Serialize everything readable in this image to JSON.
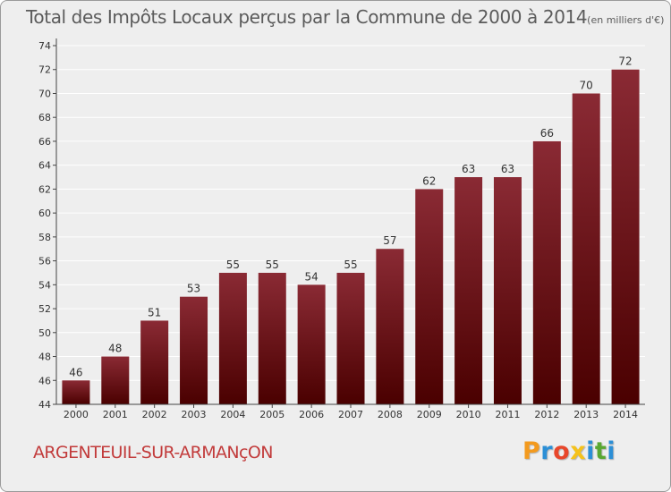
{
  "header": {
    "title": "Total des Impôts Locaux perçus par la Commune de 2000 à 2014",
    "unit": "(en milliers d'€)"
  },
  "commune_name": "ARGENTEUIL-SUR-ARMANçON",
  "logo": {
    "text": "Proxiti",
    "letters": [
      "P",
      "r",
      "o",
      "x",
      "i",
      "t",
      "i"
    ],
    "colors": [
      "#f39a1e",
      "#2c8fd6",
      "#e8472b",
      "#f5c21b",
      "#2c8fd6",
      "#5aa832",
      "#2c8fd6"
    ]
  },
  "colors": {
    "bar_top": "#8a2a34",
    "bar_bottom": "#4a0000",
    "grid": "#ffffff",
    "axis": "#444444"
  },
  "chart_data": {
    "type": "bar",
    "title": "Total des Impôts Locaux perçus par la Commune de 2000 à 2014",
    "xlabel": "",
    "ylabel": "en milliers d'€",
    "categories": [
      "2000",
      "2001",
      "2002",
      "2003",
      "2004",
      "2005",
      "2006",
      "2007",
      "2008",
      "2009",
      "2010",
      "2011",
      "2012",
      "2013",
      "2014"
    ],
    "values": [
      46,
      48,
      51,
      53,
      55,
      55,
      54,
      55,
      57,
      62,
      63,
      63,
      66,
      70,
      72
    ],
    "ylim": [
      44,
      74
    ],
    "yticks": [
      44,
      46,
      48,
      50,
      52,
      54,
      56,
      58,
      60,
      62,
      64,
      66,
      68,
      70,
      72,
      74
    ],
    "grid": true
  }
}
